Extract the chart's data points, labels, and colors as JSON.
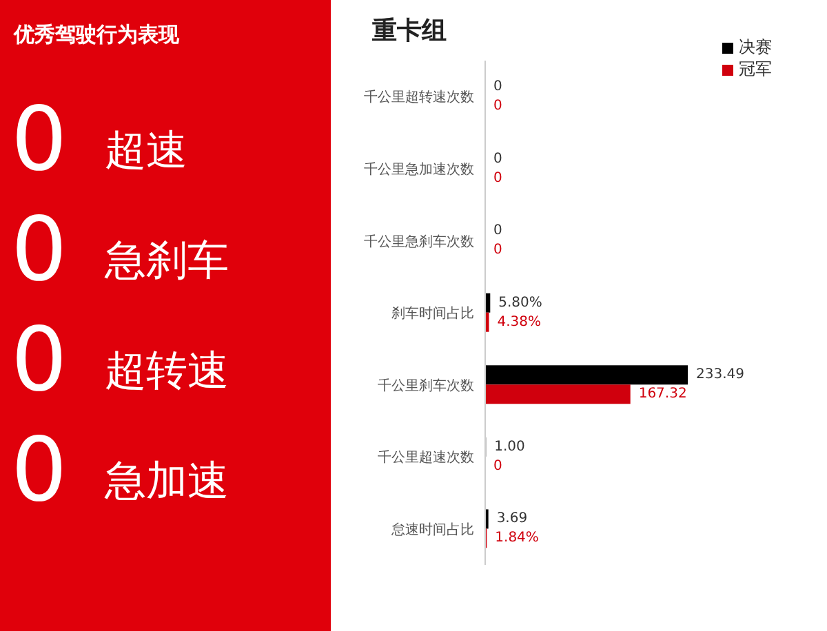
{
  "chart_data": [
    {
      "type": "other",
      "title": "优秀驾驶行为表现",
      "annotations": [
        "0",
        "超速",
        "0",
        "急刹车",
        "0",
        "超转速",
        "0",
        "急加速"
      ]
    },
    {
      "type": "bar",
      "orientation": "horizontal",
      "title": "重卡组",
      "categories": [
        "千公里超转速次数",
        "千公里急加速次数",
        "千公里急刹车次数",
        "刹车时间占比",
        "千公里刹车次数",
        "千公里超速次数",
        "怠速时间占比"
      ],
      "series": [
        {
          "name": "决赛",
          "color": "#000000",
          "values": [
            0,
            0,
            0,
            5.8,
            233.49,
            1.0,
            3.69
          ],
          "value_labels": [
            "0",
            "0",
            "0",
            "5.80%",
            "233.49",
            "1.00",
            "3.69"
          ]
        },
        {
          "name": "冠军",
          "color": "#d0000d",
          "values": [
            0,
            0,
            0,
            4.38,
            167.32,
            0,
            1.84
          ],
          "value_labels": [
            "0",
            "0",
            "0",
            "4.38%",
            "167.32",
            "0",
            "1.84%"
          ]
        }
      ],
      "legend": "top right"
    }
  ]
}
